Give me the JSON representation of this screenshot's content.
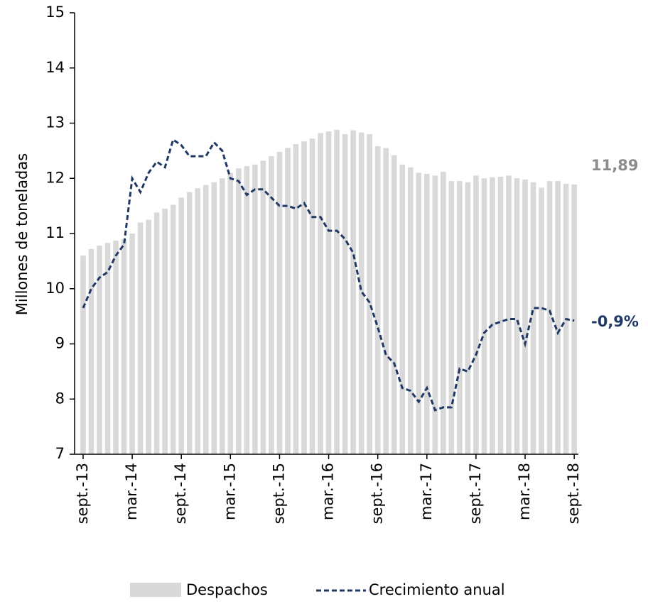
{
  "chart_data": {
    "type": "bar_line",
    "y_label": "Millones de toneladas",
    "categories": [
      "sept.-13",
      null,
      null,
      null,
      null,
      null,
      "mar.-14",
      null,
      null,
      null,
      null,
      null,
      "sept.-14",
      null,
      null,
      null,
      null,
      null,
      "mar.-15",
      null,
      null,
      null,
      null,
      null,
      "sept.-15",
      null,
      null,
      null,
      null,
      null,
      "mar.-16",
      null,
      null,
      null,
      null,
      null,
      "sept.-16",
      null,
      null,
      null,
      null,
      null,
      "mar.-17",
      null,
      null,
      null,
      null,
      null,
      "sept.-17",
      null,
      null,
      null,
      null,
      null,
      "mar.-18",
      null,
      null,
      null,
      null,
      null,
      "sept.-18"
    ],
    "series": [
      {
        "name": "Despachos",
        "type": "bar",
        "color": "#d9d9d9",
        "values": [
          10.6,
          10.72,
          10.78,
          10.83,
          10.87,
          10.9,
          11.0,
          11.2,
          11.25,
          11.38,
          11.45,
          11.52,
          11.65,
          11.75,
          11.82,
          11.88,
          11.93,
          12.0,
          12.1,
          12.18,
          12.22,
          12.25,
          12.32,
          12.4,
          12.48,
          12.55,
          12.62,
          12.67,
          12.72,
          12.82,
          12.85,
          12.88,
          12.8,
          12.87,
          12.83,
          12.8,
          12.58,
          12.55,
          12.42,
          12.25,
          12.2,
          12.1,
          12.08,
          12.05,
          12.12,
          11.95,
          11.95,
          11.93,
          12.05,
          12.0,
          12.02,
          12.03,
          12.05,
          12.0,
          11.98,
          11.93,
          11.83,
          11.95,
          11.95,
          11.9,
          11.89
        ]
      },
      {
        "name": "Crecimiento anual",
        "type": "line",
        "color": "#1f3864",
        "values": [
          9.65,
          10.0,
          10.2,
          10.3,
          10.6,
          10.8,
          12.0,
          11.75,
          12.1,
          12.3,
          12.2,
          12.7,
          12.6,
          12.4,
          12.4,
          12.4,
          12.65,
          12.5,
          12.0,
          11.95,
          11.7,
          11.8,
          11.8,
          11.65,
          11.5,
          11.5,
          11.45,
          11.55,
          11.3,
          11.3,
          11.05,
          11.05,
          10.9,
          10.65,
          9.95,
          9.75,
          9.3,
          8.8,
          8.65,
          8.2,
          8.15,
          7.95,
          8.2,
          7.8,
          7.85,
          7.85,
          8.55,
          8.5,
          8.8,
          9.2,
          9.35,
          9.4,
          9.45,
          9.45,
          9.0,
          9.65,
          9.65,
          9.6,
          9.2,
          9.45,
          9.42
        ]
      }
    ],
    "annotations": [
      {
        "text": "11,89",
        "color": "#8c8c8c"
      },
      {
        "text": "-0,9%",
        "color": "#1f3864"
      }
    ],
    "ylim": [
      7,
      15
    ],
    "yticks": [
      7,
      8,
      9,
      10,
      11,
      12,
      13,
      14,
      15
    ]
  }
}
